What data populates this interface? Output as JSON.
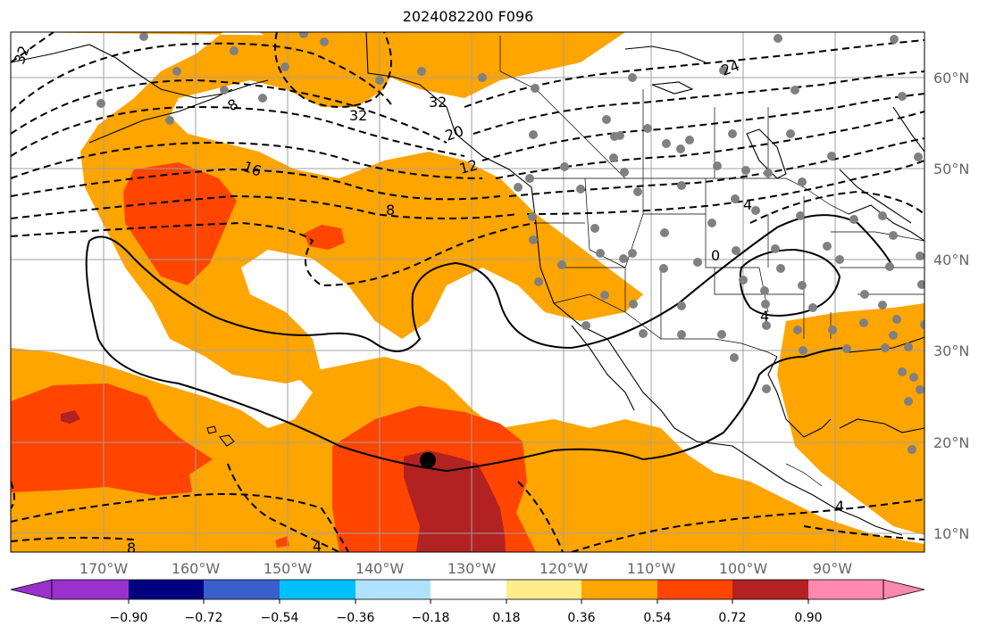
{
  "title": "2024082200 F096",
  "lon_labels": [
    "170°W",
    "160°W",
    "150°W",
    "140°W",
    "130°W",
    "120°W",
    "110°W",
    "100°W",
    "90°W"
  ],
  "lat_labels": [
    "60°N",
    "50°N",
    "40°N",
    "30°N",
    "20°N",
    "10°N"
  ],
  "contour_labels": [
    "32",
    "24",
    "32",
    "20",
    "12",
    "16",
    "8",
    "8",
    "4",
    "0",
    "4",
    "4",
    "8",
    "4",
    "32"
  ],
  "colorbar": {
    "colors": [
      "#9932cc",
      "#000080",
      "#3a5fcd",
      "#00bfff",
      "#b0e2ff",
      "#ffffff",
      "#ffec8b",
      "#ffa500",
      "#ff4500",
      "#b22222",
      "#ff88b0"
    ],
    "ticks": [
      "−0.90",
      "−0.72",
      "−0.54",
      "−0.36",
      "−0.18",
      "0.18",
      "0.36",
      "0.54",
      "0.72",
      "0.90"
    ]
  },
  "colors": {
    "orange": "#ffa500",
    "red": "#ff4500",
    "darkred": "#b22222",
    "station": "#808080",
    "grid": "#a0a0a0"
  }
}
